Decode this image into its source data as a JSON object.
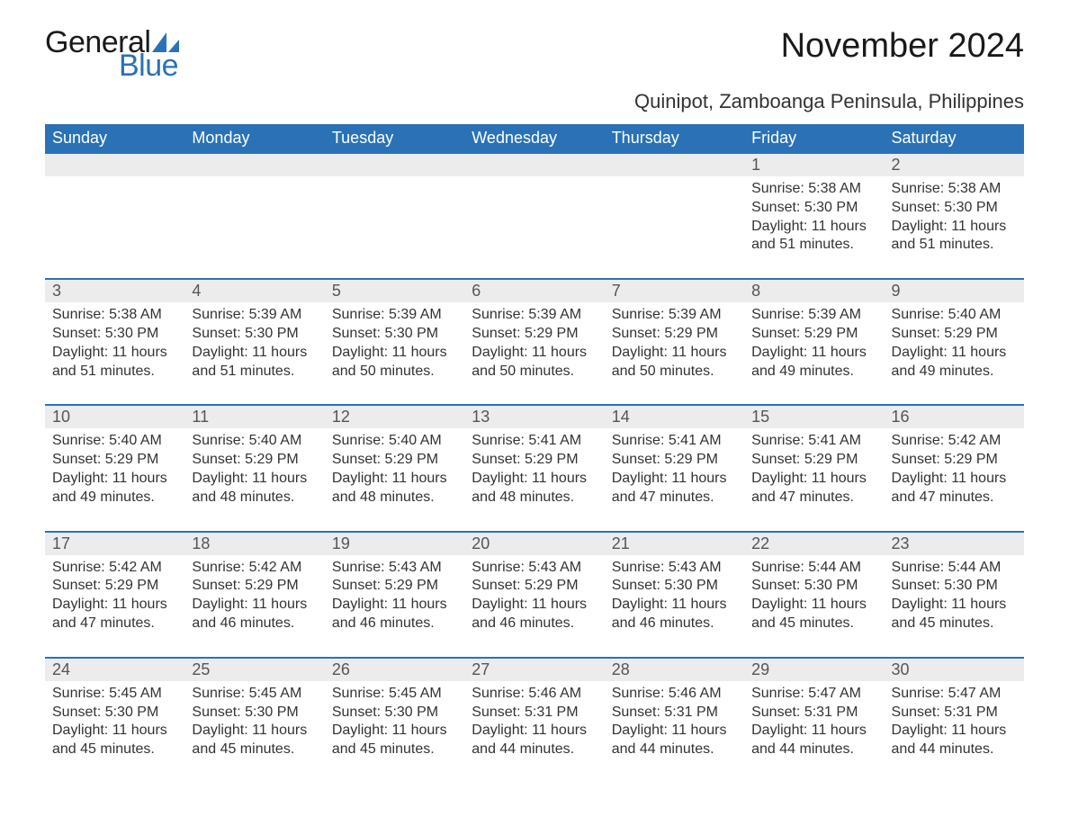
{
  "brand": {
    "word1": "General",
    "word2": "Blue",
    "shape_color": "#2a72b5"
  },
  "title": "November 2024",
  "subtitle": "Quinipot, Zamboanga Peninsula, Philippines",
  "colors": {
    "header_bg": "#2a72b5",
    "header_text": "#ffffff",
    "daynum_bg": "#ececec",
    "row_border": "#2a72b5",
    "text": "#333333",
    "background": "#ffffff"
  },
  "typography": {
    "title_fontsize": 38,
    "subtitle_fontsize": 22,
    "header_fontsize": 18,
    "daynum_fontsize": 18,
    "body_fontsize": 16,
    "font_family": "Arial"
  },
  "layout": {
    "columns": 7,
    "rows": 5,
    "leading_blanks": 5
  },
  "weekdays": [
    "Sunday",
    "Monday",
    "Tuesday",
    "Wednesday",
    "Thursday",
    "Friday",
    "Saturday"
  ],
  "days": [
    {
      "n": 1,
      "sunrise": "5:38 AM",
      "sunset": "5:30 PM",
      "daylight": "11 hours and 51 minutes."
    },
    {
      "n": 2,
      "sunrise": "5:38 AM",
      "sunset": "5:30 PM",
      "daylight": "11 hours and 51 minutes."
    },
    {
      "n": 3,
      "sunrise": "5:38 AM",
      "sunset": "5:30 PM",
      "daylight": "11 hours and 51 minutes."
    },
    {
      "n": 4,
      "sunrise": "5:39 AM",
      "sunset": "5:30 PM",
      "daylight": "11 hours and 51 minutes."
    },
    {
      "n": 5,
      "sunrise": "5:39 AM",
      "sunset": "5:30 PM",
      "daylight": "11 hours and 50 minutes."
    },
    {
      "n": 6,
      "sunrise": "5:39 AM",
      "sunset": "5:29 PM",
      "daylight": "11 hours and 50 minutes."
    },
    {
      "n": 7,
      "sunrise": "5:39 AM",
      "sunset": "5:29 PM",
      "daylight": "11 hours and 50 minutes."
    },
    {
      "n": 8,
      "sunrise": "5:39 AM",
      "sunset": "5:29 PM",
      "daylight": "11 hours and 49 minutes."
    },
    {
      "n": 9,
      "sunrise": "5:40 AM",
      "sunset": "5:29 PM",
      "daylight": "11 hours and 49 minutes."
    },
    {
      "n": 10,
      "sunrise": "5:40 AM",
      "sunset": "5:29 PM",
      "daylight": "11 hours and 49 minutes."
    },
    {
      "n": 11,
      "sunrise": "5:40 AM",
      "sunset": "5:29 PM",
      "daylight": "11 hours and 48 minutes."
    },
    {
      "n": 12,
      "sunrise": "5:40 AM",
      "sunset": "5:29 PM",
      "daylight": "11 hours and 48 minutes."
    },
    {
      "n": 13,
      "sunrise": "5:41 AM",
      "sunset": "5:29 PM",
      "daylight": "11 hours and 48 minutes."
    },
    {
      "n": 14,
      "sunrise": "5:41 AM",
      "sunset": "5:29 PM",
      "daylight": "11 hours and 47 minutes."
    },
    {
      "n": 15,
      "sunrise": "5:41 AM",
      "sunset": "5:29 PM",
      "daylight": "11 hours and 47 minutes."
    },
    {
      "n": 16,
      "sunrise": "5:42 AM",
      "sunset": "5:29 PM",
      "daylight": "11 hours and 47 minutes."
    },
    {
      "n": 17,
      "sunrise": "5:42 AM",
      "sunset": "5:29 PM",
      "daylight": "11 hours and 47 minutes."
    },
    {
      "n": 18,
      "sunrise": "5:42 AM",
      "sunset": "5:29 PM",
      "daylight": "11 hours and 46 minutes."
    },
    {
      "n": 19,
      "sunrise": "5:43 AM",
      "sunset": "5:29 PM",
      "daylight": "11 hours and 46 minutes."
    },
    {
      "n": 20,
      "sunrise": "5:43 AM",
      "sunset": "5:29 PM",
      "daylight": "11 hours and 46 minutes."
    },
    {
      "n": 21,
      "sunrise": "5:43 AM",
      "sunset": "5:30 PM",
      "daylight": "11 hours and 46 minutes."
    },
    {
      "n": 22,
      "sunrise": "5:44 AM",
      "sunset": "5:30 PM",
      "daylight": "11 hours and 45 minutes."
    },
    {
      "n": 23,
      "sunrise": "5:44 AM",
      "sunset": "5:30 PM",
      "daylight": "11 hours and 45 minutes."
    },
    {
      "n": 24,
      "sunrise": "5:45 AM",
      "sunset": "5:30 PM",
      "daylight": "11 hours and 45 minutes."
    },
    {
      "n": 25,
      "sunrise": "5:45 AM",
      "sunset": "5:30 PM",
      "daylight": "11 hours and 45 minutes."
    },
    {
      "n": 26,
      "sunrise": "5:45 AM",
      "sunset": "5:30 PM",
      "daylight": "11 hours and 45 minutes."
    },
    {
      "n": 27,
      "sunrise": "5:46 AM",
      "sunset": "5:31 PM",
      "daylight": "11 hours and 44 minutes."
    },
    {
      "n": 28,
      "sunrise": "5:46 AM",
      "sunset": "5:31 PM",
      "daylight": "11 hours and 44 minutes."
    },
    {
      "n": 29,
      "sunrise": "5:47 AM",
      "sunset": "5:31 PM",
      "daylight": "11 hours and 44 minutes."
    },
    {
      "n": 30,
      "sunrise": "5:47 AM",
      "sunset": "5:31 PM",
      "daylight": "11 hours and 44 minutes."
    }
  ],
  "labels": {
    "sunrise": "Sunrise:",
    "sunset": "Sunset:",
    "daylight": "Daylight:"
  }
}
